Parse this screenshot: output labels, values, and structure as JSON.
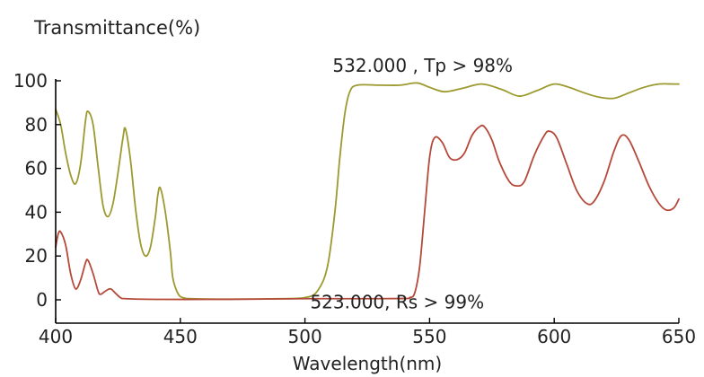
{
  "chart_data": {
    "type": "line",
    "ylabel": "Transmittance(%)",
    "xlabel": "Wavelength(nm)",
    "xlim": [
      400,
      650
    ],
    "ylim": [
      0,
      110
    ],
    "xticks": [
      400,
      450,
      500,
      550,
      600,
      650
    ],
    "yticks": [
      0,
      20,
      40,
      60,
      80,
      100
    ],
    "xtick_labels": [
      "400",
      "450",
      "500",
      "550",
      "600",
      "650"
    ],
    "ytick_labels": [
      "0",
      "20",
      "40",
      "60",
      "80",
      "100"
    ],
    "grid": false,
    "series": [
      {
        "color": "#9c9a2e",
        "points": [
          [
            400,
            87
          ],
          [
            402,
            80
          ],
          [
            404,
            67
          ],
          [
            406,
            57
          ],
          [
            408,
            53
          ],
          [
            410,
            62
          ],
          [
            412,
            82
          ],
          [
            413,
            86
          ],
          [
            415,
            80
          ],
          [
            417,
            61
          ],
          [
            419,
            43
          ],
          [
            421,
            38
          ],
          [
            423,
            44
          ],
          [
            425,
            58
          ],
          [
            427,
            74
          ],
          [
            428,
            78
          ],
          [
            430,
            64
          ],
          [
            432,
            42
          ],
          [
            434,
            26
          ],
          [
            436,
            20
          ],
          [
            438,
            24
          ],
          [
            440,
            38
          ],
          [
            441,
            48
          ],
          [
            442,
            51
          ],
          [
            444,
            40
          ],
          [
            446,
            22
          ],
          [
            447,
            10
          ],
          [
            449,
            3
          ],
          [
            451,
            1
          ],
          [
            455,
            0.5
          ],
          [
            470,
            0.3
          ],
          [
            490,
            0.5
          ],
          [
            500,
            1
          ],
          [
            505,
            4
          ],
          [
            509,
            15
          ],
          [
            512,
            40
          ],
          [
            514,
            65
          ],
          [
            516,
            85
          ],
          [
            518,
            95
          ],
          [
            521,
            98
          ],
          [
            530,
            98
          ],
          [
            538,
            98
          ],
          [
            545,
            99
          ],
          [
            550,
            97
          ],
          [
            556,
            95
          ],
          [
            563,
            96.5
          ],
          [
            571,
            98.5
          ],
          [
            579,
            96
          ],
          [
            586,
            93
          ],
          [
            593,
            95.5
          ],
          [
            600,
            98.5
          ],
          [
            606,
            97
          ],
          [
            612,
            94.5
          ],
          [
            618,
            92.5
          ],
          [
            624,
            92
          ],
          [
            630,
            94.5
          ],
          [
            636,
            97
          ],
          [
            642,
            98.5
          ],
          [
            648,
            98.5
          ],
          [
            650,
            98.5
          ]
        ]
      },
      {
        "color": "#b5493a",
        "points": [
          [
            400,
            24
          ],
          [
            401,
            30
          ],
          [
            402,
            31
          ],
          [
            404,
            25
          ],
          [
            406,
            12
          ],
          [
            408,
            5
          ],
          [
            410,
            9
          ],
          [
            412,
            17
          ],
          [
            413,
            18
          ],
          [
            415,
            12
          ],
          [
            417,
            4
          ],
          [
            418,
            2.5
          ],
          [
            420,
            4
          ],
          [
            422,
            5
          ],
          [
            424,
            3
          ],
          [
            426,
            1
          ],
          [
            428,
            0.5
          ],
          [
            440,
            0.2
          ],
          [
            460,
            0.2
          ],
          [
            480,
            0.3
          ],
          [
            500,
            0.5
          ],
          [
            520,
            0.5
          ],
          [
            540,
            0.6
          ],
          [
            542,
            1
          ],
          [
            544,
            3
          ],
          [
            546,
            15
          ],
          [
            548,
            40
          ],
          [
            550,
            65
          ],
          [
            552,
            74
          ],
          [
            555,
            72
          ],
          [
            558,
            65
          ],
          [
            561,
            64
          ],
          [
            564,
            67
          ],
          [
            567,
            75
          ],
          [
            570,
            79
          ],
          [
            572,
            79
          ],
          [
            575,
            73
          ],
          [
            578,
            63
          ],
          [
            582,
            54
          ],
          [
            585,
            52
          ],
          [
            588,
            54
          ],
          [
            592,
            66
          ],
          [
            596,
            75
          ],
          [
            598,
            77
          ],
          [
            601,
            74
          ],
          [
            605,
            62
          ],
          [
            609,
            50
          ],
          [
            613,
            44
          ],
          [
            616,
            45
          ],
          [
            620,
            54
          ],
          [
            624,
            68
          ],
          [
            627,
            75
          ],
          [
            630,
            73
          ],
          [
            634,
            63
          ],
          [
            638,
            52
          ],
          [
            642,
            44
          ],
          [
            645,
            41
          ],
          [
            648,
            42
          ],
          [
            650,
            46
          ]
        ]
      }
    ],
    "annotations": [
      {
        "text": "532.000 , Tp > 98%",
        "x": 532,
        "y": 107
      },
      {
        "text": "523.000, Rs > 99%",
        "x": 523,
        "y": -1
      }
    ]
  }
}
